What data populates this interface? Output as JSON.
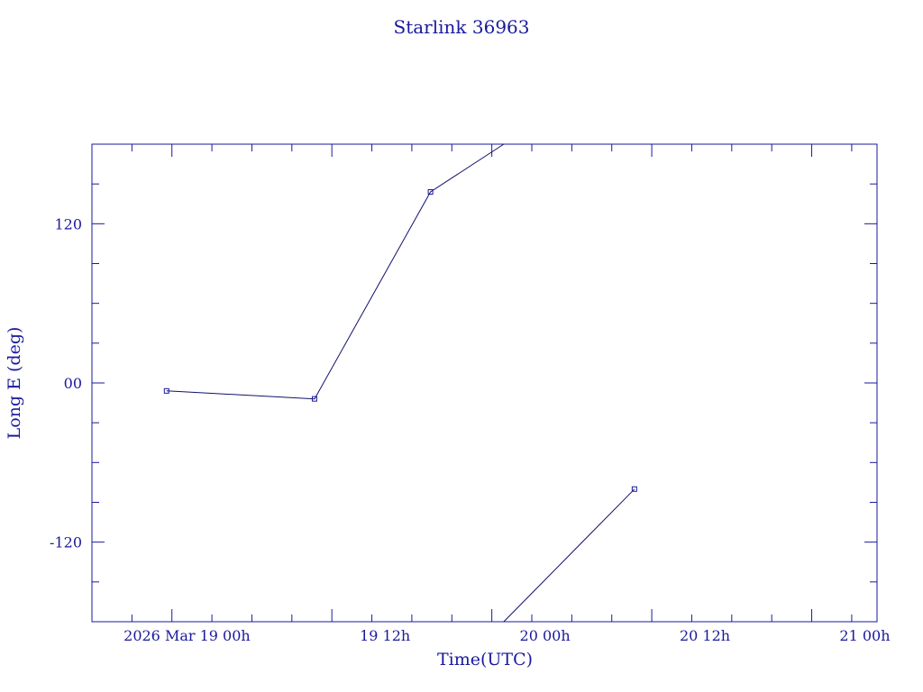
{
  "chart_data": {
    "type": "line",
    "title": "Starlink 36963",
    "xlabel": "Time(UTC)",
    "ylabel": "Long E (deg)",
    "x_unit": "hours",
    "xlim": [
      -6.0,
      52.9
    ],
    "ylim": [
      -180,
      180
    ],
    "y_ticks": [
      {
        "value": 120,
        "label": "120"
      },
      {
        "value": 0,
        "label": "00"
      },
      {
        "value": -120,
        "label": "-120"
      }
    ],
    "x_ticks": [
      {
        "value": 0,
        "label": "2026 Mar 19   00h"
      },
      {
        "value": 12,
        "label": "19  12h"
      },
      {
        "value": 24,
        "label": "20  00h"
      },
      {
        "value": 36,
        "label": "20  12h"
      },
      {
        "value": 48,
        "label": "21  00h"
      }
    ],
    "series": [
      {
        "segments": [
          [
            [
              -0.4,
              -6
            ],
            [
              10.7,
              -12
            ],
            [
              19.4,
              144
            ],
            [
              24.9,
              180
            ]
          ],
          [
            [
              24.9,
              -180
            ],
            [
              34.7,
              -80
            ]
          ]
        ],
        "markers": [
          [
            -0.4,
            -6
          ],
          [
            10.7,
            -12
          ],
          [
            19.4,
            144
          ],
          [
            34.7,
            -80
          ]
        ]
      }
    ],
    "color": "#1a1a9c",
    "grid": false
  }
}
